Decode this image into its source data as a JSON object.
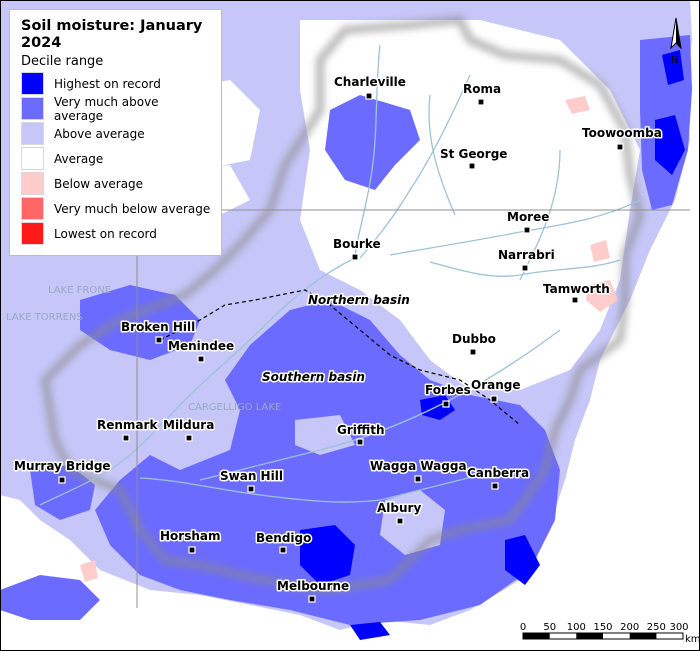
{
  "legend": {
    "title": "Soil moisture: January 2024",
    "subtitle": "Decile range",
    "items": [
      {
        "label": "Highest on record",
        "color": "#0000ff"
      },
      {
        "label": "Very much above average",
        "color": "#6b6bff"
      },
      {
        "label": "Above average",
        "color": "#c6c6f8"
      },
      {
        "label": "Average",
        "color": "#ffffff"
      },
      {
        "label": "Below average",
        "color": "#ffcccc"
      },
      {
        "label": "Very much below average",
        "color": "#ff6666"
      },
      {
        "label": "Lowest on record",
        "color": "#ff1a1a"
      }
    ]
  },
  "towns": [
    {
      "name": "Charleville"
    },
    {
      "name": "Roma"
    },
    {
      "name": "Toowoomba"
    },
    {
      "name": "St George"
    },
    {
      "name": "Moree"
    },
    {
      "name": "Narrabri"
    },
    {
      "name": "Bourke"
    },
    {
      "name": "Tamworth"
    },
    {
      "name": "Broken Hill"
    },
    {
      "name": "Menindee"
    },
    {
      "name": "Dubbo"
    },
    {
      "name": "Forbes"
    },
    {
      "name": "Orange"
    },
    {
      "name": "Renmark"
    },
    {
      "name": "Mildura"
    },
    {
      "name": "Griffith"
    },
    {
      "name": "Murray Bridge"
    },
    {
      "name": "Swan Hill"
    },
    {
      "name": "Wagga Wagga"
    },
    {
      "name": "Canberra"
    },
    {
      "name": "Albury"
    },
    {
      "name": "Horsham"
    },
    {
      "name": "Bendigo"
    },
    {
      "name": "Melbourne"
    }
  ],
  "basins": {
    "northern": "Northern basin",
    "southern": "Southern basin"
  },
  "lakes": {
    "frome": "LAKE FRONE",
    "torrens": "LAKE TORRENS",
    "cargelligo": "CARGELLIGO LAKE"
  },
  "north_arrow": "N",
  "scale": {
    "ticks": [
      "0",
      "50",
      "100",
      "150",
      "200",
      "250",
      "300"
    ],
    "unit": "km"
  }
}
